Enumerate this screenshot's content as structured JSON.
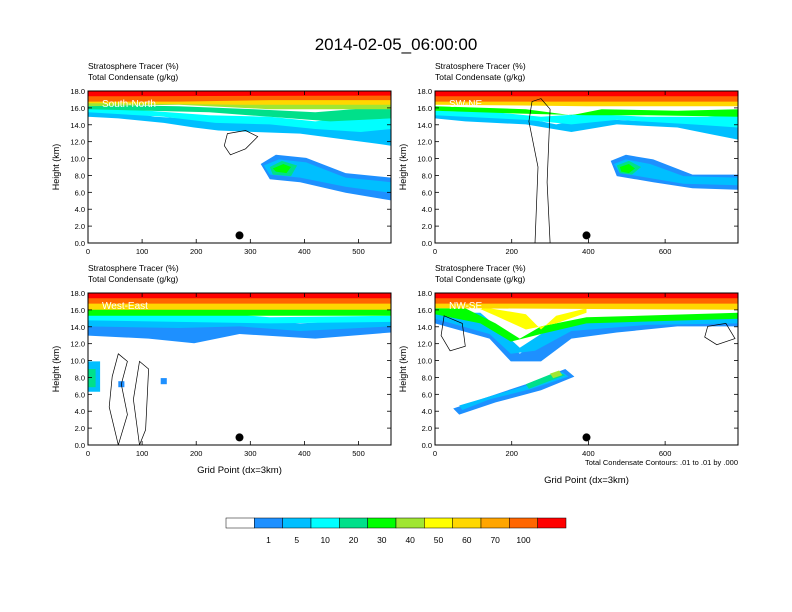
{
  "figure": {
    "title": "2014-02-05_06:00:00",
    "footnote": "Total Condensate Contours: .01 to .01 by .000"
  },
  "panel_titles": {
    "line1": "Stratosphere Tracer   (%)",
    "line2": "Total Condensate   (g/kg)"
  },
  "colorbar": {
    "colors": [
      "#ffffff",
      "#1e90ff",
      "#00bfff",
      "#00ffff",
      "#00e08a",
      "#00ff00",
      "#a0e632",
      "#ffff00",
      "#ffd700",
      "#ffa500",
      "#ff6600",
      "#ff0000"
    ],
    "labels": [
      "1",
      "5",
      "10",
      "20",
      "30",
      "40",
      "50",
      "60",
      "70",
      "100"
    ]
  },
  "chart_data": [
    {
      "type": "heatmap",
      "panel_label": "South-North",
      "ylabel": "Height (km)",
      "xlabel": "",
      "xlim": [
        0,
        560
      ],
      "ylim": [
        0,
        18
      ],
      "x_ticks": [
        "0",
        "100",
        "200",
        "300",
        "400",
        "500"
      ],
      "x_tick_values": [
        0,
        100,
        200,
        300,
        400,
        500
      ],
      "y_ticks": [
        "0.0",
        "2.0",
        "4.0",
        "6.0",
        "8.0",
        "10.0",
        "12.0",
        "14.0",
        "16.0",
        "18.0"
      ],
      "marker_x": 280,
      "marker_y": 0.9
    },
    {
      "type": "heatmap",
      "panel_label": "SW-NE",
      "ylabel": "Height (km)",
      "xlabel": "",
      "xlim": [
        0,
        790
      ],
      "ylim": [
        0,
        18
      ],
      "x_ticks": [
        "0",
        "200",
        "400",
        "600"
      ],
      "x_tick_values": [
        0,
        200,
        400,
        600
      ],
      "y_ticks": [
        "0.0",
        "2.0",
        "4.0",
        "6.0",
        "8.0",
        "10.0",
        "12.0",
        "14.0",
        "16.0",
        "18.0"
      ],
      "marker_x": 395,
      "marker_y": 0.9
    },
    {
      "type": "heatmap",
      "panel_label": "West-East",
      "ylabel": "Height (km)",
      "xlabel": "Grid Point (dx=3km)",
      "xlim": [
        0,
        560
      ],
      "ylim": [
        0,
        18
      ],
      "x_ticks": [
        "0",
        "100",
        "200",
        "300",
        "400",
        "500"
      ],
      "x_tick_values": [
        0,
        100,
        200,
        300,
        400,
        500
      ],
      "y_ticks": [
        "0.0",
        "2.0",
        "4.0",
        "6.0",
        "8.0",
        "10.0",
        "12.0",
        "14.0",
        "16.0",
        "18.0"
      ],
      "marker_x": 280,
      "marker_y": 0.9
    },
    {
      "type": "heatmap",
      "panel_label": "NW-SE",
      "ylabel": "Height (km)",
      "xlabel": "Grid Point (dx=3km)",
      "xlim": [
        0,
        790
      ],
      "ylim": [
        0,
        18
      ],
      "x_ticks": [
        "0",
        "200",
        "400",
        "600"
      ],
      "x_tick_values": [
        0,
        200,
        400,
        600
      ],
      "y_ticks": [
        "0.0",
        "2.0",
        "4.0",
        "6.0",
        "8.0",
        "10.0",
        "12.0",
        "14.0",
        "16.0",
        "18.0"
      ],
      "marker_x": 395,
      "marker_y": 0.9
    }
  ]
}
